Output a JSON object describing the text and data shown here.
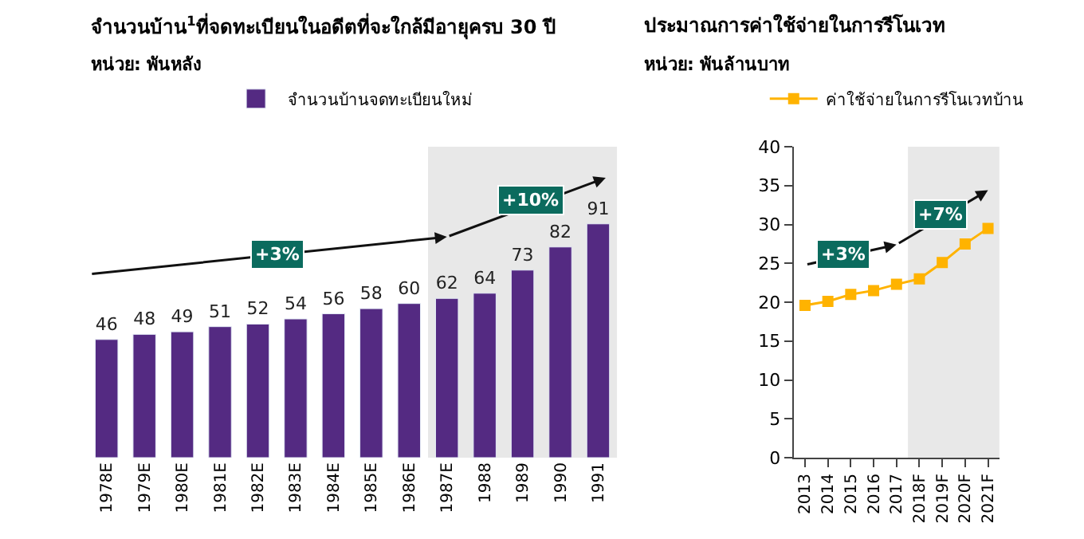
{
  "chart_data": [
    {
      "type": "bar",
      "title": "จำนวนบ้าน$^{1}$ที่จดทะเบียนในอดีตที่จะใกล้มีอายุครบ 30 ปี",
      "subtitle": "หน่วย: พันหลัง",
      "categories": [
        "1978E",
        "1979E",
        "1980E",
        "1981E",
        "1982E",
        "1983E",
        "1984E",
        "1985E",
        "1986E",
        "1987E",
        "1988",
        "1989",
        "1990",
        "1991"
      ],
      "series": [
        {
          "name": "จำนวนบ้านจดทะเบียนใหม่",
          "color": "#542a82",
          "values": [
            46,
            48,
            49,
            51,
            52,
            54,
            56,
            58,
            60,
            62,
            64,
            73,
            82,
            91
          ]
        }
      ],
      "data_labels": true,
      "tick_labels": "x",
      "legend": "top",
      "grid": false,
      "bands": [
        {
          "axis": "x",
          "from": "1987E",
          "to": "1991",
          "color": "#e8e8e8"
        }
      ],
      "annotations": [
        "+3%",
        "+10%"
      ]
    },
    {
      "type": "line",
      "title": "ประมาณการค่าใช้จ่ายในการรีโนเวท",
      "subtitle": "หน่วย: พันล้านบาท",
      "categories": [
        "2013",
        "2014",
        "2015",
        "2016",
        "2017",
        "2018F",
        "2019F",
        "2020F",
        "2021F"
      ],
      "series": [
        {
          "name": "ค่าใช้จ่ายในการรีโนเวทบ้าน",
          "color": "#ffb300",
          "values": [
            19.6,
            20.1,
            21.0,
            21.5,
            22.3,
            23.0,
            25.1,
            27.5,
            29.5
          ]
        }
      ],
      "ylim": [
        0,
        40
      ],
      "yticks": [
        0,
        5,
        10,
        15,
        20,
        25,
        30,
        35,
        40
      ],
      "marker": "square",
      "line_style": "solid",
      "legend": "top",
      "grid": false,
      "bands": [
        {
          "axis": "x",
          "from": "2018F",
          "to": "2021F",
          "color": "#e8e8e8"
        }
      ],
      "annotations": [
        "+3%",
        "+7%"
      ]
    }
  ]
}
